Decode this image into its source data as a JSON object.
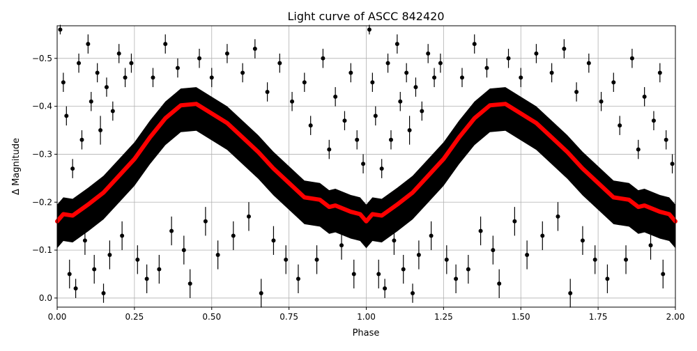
{
  "chart_data": {
    "type": "scatter",
    "title": "Light curve of ASCC 842420",
    "xlabel": "Phase",
    "ylabel": "Δ Magnitude",
    "xlim": [
      0,
      2
    ],
    "ylim": [
      0.019,
      -0.568
    ],
    "y_inverted": true,
    "grid": true,
    "x_ticks": [
      0,
      0.25,
      0.5,
      0.75,
      1.0,
      1.25,
      1.5,
      1.75,
      2.0
    ],
    "x_tick_labels": [
      "0.00",
      "0.25",
      "0.50",
      "0.75",
      "1.00",
      "1.25",
      "1.50",
      "1.75",
      "2.00"
    ],
    "y_ticks": [
      -0.5,
      -0.4,
      -0.3,
      -0.2,
      -0.1,
      0.0
    ],
    "y_tick_labels": [
      "−0.5",
      "−0.4",
      "−0.3",
      "−0.2",
      "−0.1",
      "0.0"
    ],
    "repeat_period": 1,
    "colors": {
      "points": "#000000",
      "binned": "#ff0000",
      "grid": "#b0b0b0"
    },
    "binned_curve": {
      "phase": [
        0,
        0.02,
        0.05,
        0.1,
        0.15,
        0.2,
        0.25,
        0.3,
        0.35,
        0.4,
        0.45,
        0.5,
        0.55,
        0.6,
        0.65,
        0.7,
        0.75,
        0.8,
        0.85,
        0.88,
        0.9,
        0.95,
        0.98,
        1.0
      ],
      "mag": [
        -0.16,
        -0.175,
        -0.172,
        -0.195,
        -0.22,
        -0.255,
        -0.29,
        -0.335,
        -0.375,
        -0.402,
        -0.405,
        -0.385,
        -0.365,
        -0.335,
        -0.305,
        -0.27,
        -0.24,
        -0.21,
        -0.205,
        -0.19,
        -0.193,
        -0.18,
        -0.175,
        -0.16
      ]
    },
    "band_spread": 0.035,
    "points": [
      [
        0.01,
        -0.56,
        0.01
      ],
      [
        0.02,
        -0.45,
        0.02
      ],
      [
        0.03,
        -0.38,
        0.02
      ],
      [
        0.04,
        -0.05,
        0.03
      ],
      [
        0.05,
        -0.27,
        0.02
      ],
      [
        0.06,
        -0.02,
        0.02
      ],
      [
        0.07,
        -0.49,
        0.02
      ],
      [
        0.08,
        -0.33,
        0.02
      ],
      [
        0.09,
        -0.12,
        0.03
      ],
      [
        0.1,
        -0.53,
        0.02
      ],
      [
        0.11,
        -0.41,
        0.02
      ],
      [
        0.12,
        -0.06,
        0.03
      ],
      [
        0.13,
        -0.47,
        0.02
      ],
      [
        0.14,
        -0.35,
        0.03
      ],
      [
        0.15,
        -0.01,
        0.02
      ],
      [
        0.16,
        -0.44,
        0.02
      ],
      [
        0.17,
        -0.09,
        0.03
      ],
      [
        0.18,
        -0.39,
        0.02
      ],
      [
        0.2,
        -0.51,
        0.02
      ],
      [
        0.21,
        -0.13,
        0.03
      ],
      [
        0.22,
        -0.46,
        0.02
      ],
      [
        0.24,
        -0.49,
        0.02
      ],
      [
        0.26,
        -0.08,
        0.03
      ],
      [
        0.29,
        -0.04,
        0.03
      ],
      [
        0.31,
        -0.46,
        0.02
      ],
      [
        0.33,
        -0.06,
        0.03
      ],
      [
        0.35,
        -0.53,
        0.02
      ],
      [
        0.37,
        -0.14,
        0.03
      ],
      [
        0.39,
        -0.48,
        0.02
      ],
      [
        0.41,
        -0.1,
        0.03
      ],
      [
        0.43,
        -0.03,
        0.03
      ],
      [
        0.46,
        -0.5,
        0.02
      ],
      [
        0.48,
        -0.16,
        0.03
      ],
      [
        0.5,
        -0.46,
        0.02
      ],
      [
        0.52,
        -0.09,
        0.03
      ],
      [
        0.55,
        -0.51,
        0.02
      ],
      [
        0.57,
        -0.13,
        0.03
      ],
      [
        0.6,
        -0.47,
        0.02
      ],
      [
        0.62,
        -0.17,
        0.03
      ],
      [
        0.64,
        -0.52,
        0.02
      ],
      [
        0.66,
        -0.01,
        0.03
      ],
      [
        0.68,
        -0.43,
        0.02
      ],
      [
        0.7,
        -0.12,
        0.03
      ],
      [
        0.72,
        -0.49,
        0.02
      ],
      [
        0.74,
        -0.08,
        0.03
      ],
      [
        0.76,
        -0.41,
        0.02
      ],
      [
        0.78,
        -0.04,
        0.03
      ],
      [
        0.8,
        -0.45,
        0.02
      ],
      [
        0.82,
        -0.36,
        0.02
      ],
      [
        0.84,
        -0.08,
        0.03
      ],
      [
        0.86,
        -0.5,
        0.02
      ],
      [
        0.88,
        -0.31,
        0.02
      ],
      [
        0.9,
        -0.42,
        0.02
      ],
      [
        0.92,
        -0.11,
        0.03
      ],
      [
        0.93,
        -0.37,
        0.02
      ],
      [
        0.95,
        -0.47,
        0.02
      ],
      [
        0.96,
        -0.05,
        0.03
      ],
      [
        0.97,
        -0.33,
        0.02
      ],
      [
        0.99,
        -0.28,
        0.02
      ]
    ]
  }
}
